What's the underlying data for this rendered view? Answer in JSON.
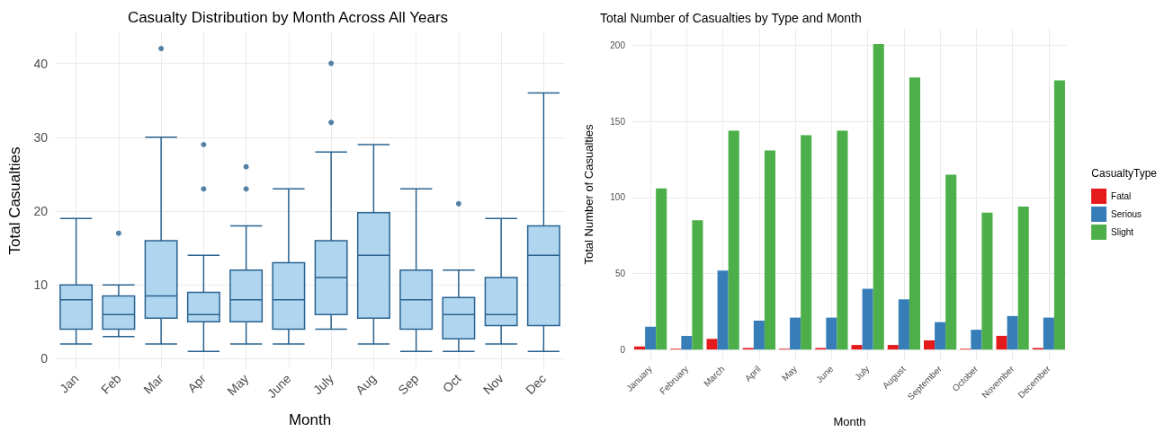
{
  "chart_data": [
    {
      "type": "box",
      "title": "Casualty Distribution by Month Across All Years",
      "xlabel": "Month",
      "ylabel": "Total Casualties",
      "categories": [
        "Jan",
        "Feb",
        "Mar",
        "Apr",
        "May",
        "June",
        "July",
        "Aug",
        "Sep",
        "Oct",
        "Nov",
        "Dec"
      ],
      "boxes": [
        {
          "low": 2,
          "q1": 4,
          "median": 8,
          "q3": 10,
          "high": 19
        },
        {
          "low": 3,
          "q1": 4,
          "median": 6,
          "q3": 8.5,
          "high": 10,
          "outliers": [
            17
          ]
        },
        {
          "low": 2,
          "q1": 5.5,
          "median": 8.5,
          "q3": 16,
          "high": 30,
          "outliers": [
            42
          ]
        },
        {
          "low": 1,
          "q1": 5,
          "median": 6,
          "q3": 9,
          "high": 14,
          "outliers": [
            23,
            29
          ]
        },
        {
          "low": 2,
          "q1": 5,
          "median": 8,
          "q3": 12,
          "high": 18,
          "outliers": [
            23,
            26
          ]
        },
        {
          "low": 2,
          "q1": 4,
          "median": 8,
          "q3": 13,
          "high": 23
        },
        {
          "low": 4,
          "q1": 6,
          "median": 11,
          "q3": 16,
          "high": 28,
          "outliers": [
            32,
            40
          ]
        },
        {
          "low": 2,
          "q1": 5.5,
          "median": 14,
          "q3": 19.8,
          "high": 29
        },
        {
          "low": 1,
          "q1": 4,
          "median": 8,
          "q3": 12,
          "high": 23
        },
        {
          "low": 1,
          "q1": 2.7,
          "median": 6,
          "q3": 8.3,
          "high": 12,
          "outliers": [
            21
          ]
        },
        {
          "low": 2,
          "q1": 4.5,
          "median": 6,
          "q3": 11,
          "high": 19
        },
        {
          "low": 1,
          "q1": 4.5,
          "median": 14,
          "q3": 18,
          "high": 36
        }
      ],
      "color": "#2a6390",
      "colors": [
        "#b0d5ef",
        "#b0d5ef",
        "#b0d5ef",
        "#b0d5ef",
        "#b0d5ef",
        "#b0d5ef",
        "#b0d5ef",
        "#b0d5ef",
        "#b0d5ef",
        "#b0d5ef",
        "#b0d5ef",
        "#b0d5ef"
      ],
      "ylim": [
        -1.4,
        44.2
      ],
      "yticks": [
        0,
        10,
        20,
        30,
        40
      ],
      "grid": true,
      "legend": false
    },
    {
      "type": "bar",
      "title": "Total Number of Casualties by Type and Month",
      "xlabel": "Month",
      "ylabel": "Total Number of Casualties",
      "legend_title": "CasualtyType",
      "categories": [
        "January",
        "February",
        "March",
        "April",
        "May",
        "June",
        "July",
        "August",
        "September",
        "October",
        "November",
        "December"
      ],
      "series": [
        {
          "name": "Fatal",
          "color": "#e41a1c",
          "values": [
            2,
            0.5,
            7,
            1,
            0.5,
            1,
            3,
            3,
            6,
            0.5,
            9,
            1
          ]
        },
        {
          "name": "Serious",
          "color": "#377eb8",
          "values": [
            15,
            9,
            52,
            19,
            21,
            21,
            40,
            33,
            18,
            13,
            22,
            21
          ]
        },
        {
          "name": "Slight",
          "color": "#4daf4a",
          "values": [
            106,
            85,
            144,
            131,
            141,
            144,
            201,
            179,
            115,
            90,
            94,
            177
          ]
        }
      ],
      "ylim": [
        -7,
        211
      ],
      "yticks": [
        0,
        50,
        100,
        150,
        200
      ],
      "grid": true,
      "legend": "right"
    }
  ]
}
